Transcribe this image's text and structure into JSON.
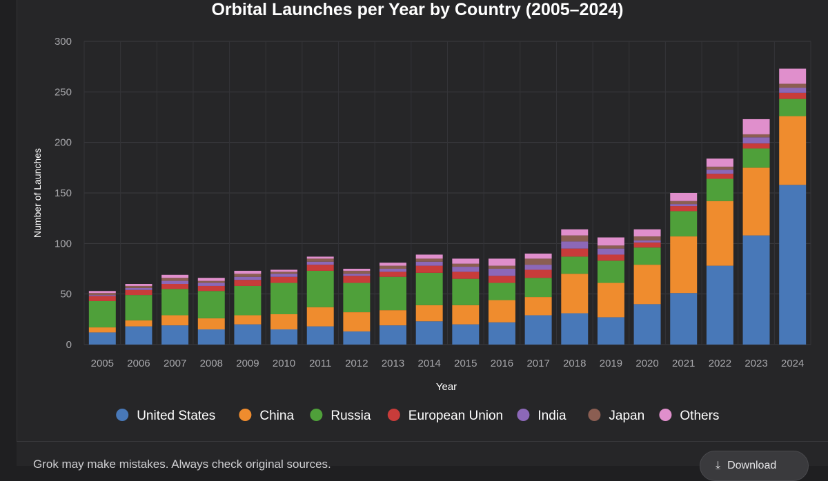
{
  "chart_data": {
    "type": "bar",
    "stacked": true,
    "title": "Orbital Launches per Year by Country (2005–2024)",
    "xlabel": "Year",
    "ylabel": "Number of Launches",
    "ylim": [
      0,
      300
    ],
    "yticks": [
      0,
      50,
      100,
      150,
      200,
      250,
      300
    ],
    "grid": true,
    "legend_position": "bottom",
    "categories": [
      "2005",
      "2006",
      "2007",
      "2008",
      "2009",
      "2010",
      "2011",
      "2012",
      "2013",
      "2014",
      "2015",
      "2016",
      "2017",
      "2018",
      "2019",
      "2020",
      "2021",
      "2022",
      "2023",
      "2024"
    ],
    "series": [
      {
        "name": "United States",
        "color": "#4878b8",
        "values": [
          12,
          18,
          19,
          15,
          20,
          15,
          18,
          13,
          19,
          23,
          20,
          22,
          29,
          31,
          27,
          40,
          51,
          78,
          108,
          158
        ]
      },
      {
        "name": "China",
        "color": "#ef8c2e",
        "values": [
          5,
          6,
          10,
          11,
          9,
          15,
          19,
          19,
          15,
          16,
          19,
          22,
          18,
          39,
          34,
          39,
          56,
          64,
          67,
          68
        ]
      },
      {
        "name": "Russia",
        "color": "#4fa03a",
        "values": [
          26,
          25,
          26,
          27,
          29,
          31,
          36,
          29,
          33,
          32,
          26,
          17,
          19,
          17,
          22,
          17,
          25,
          22,
          19,
          17
        ]
      },
      {
        "name": "European Union",
        "color": "#c83c3a",
        "values": [
          5,
          5,
          5,
          5,
          6,
          6,
          6,
          7,
          5,
          7,
          7,
          7,
          8,
          8,
          6,
          5,
          5,
          5,
          5,
          6
        ]
      },
      {
        "name": "India",
        "color": "#8c68b8",
        "values": [
          1,
          2,
          3,
          3,
          3,
          3,
          3,
          2,
          3,
          4,
          5,
          7,
          5,
          7,
          6,
          2,
          2,
          4,
          6,
          5
        ]
      },
      {
        "name": "Japan",
        "color": "#8b5e52",
        "values": [
          2,
          2,
          3,
          2,
          3,
          2,
          3,
          3,
          3,
          3,
          3,
          3,
          6,
          6,
          3,
          4,
          3,
          3,
          3,
          4
        ]
      },
      {
        "name": "Others",
        "color": "#e08fcc",
        "values": [
          2,
          2,
          3,
          3,
          3,
          2,
          2,
          2,
          3,
          4,
          5,
          7,
          5,
          6,
          8,
          7,
          8,
          8,
          15,
          15
        ]
      }
    ]
  },
  "footer": {
    "note": "Grok may make mistakes. Always check original sources.",
    "download_label": "Download",
    "download_icon": "download-icon"
  }
}
